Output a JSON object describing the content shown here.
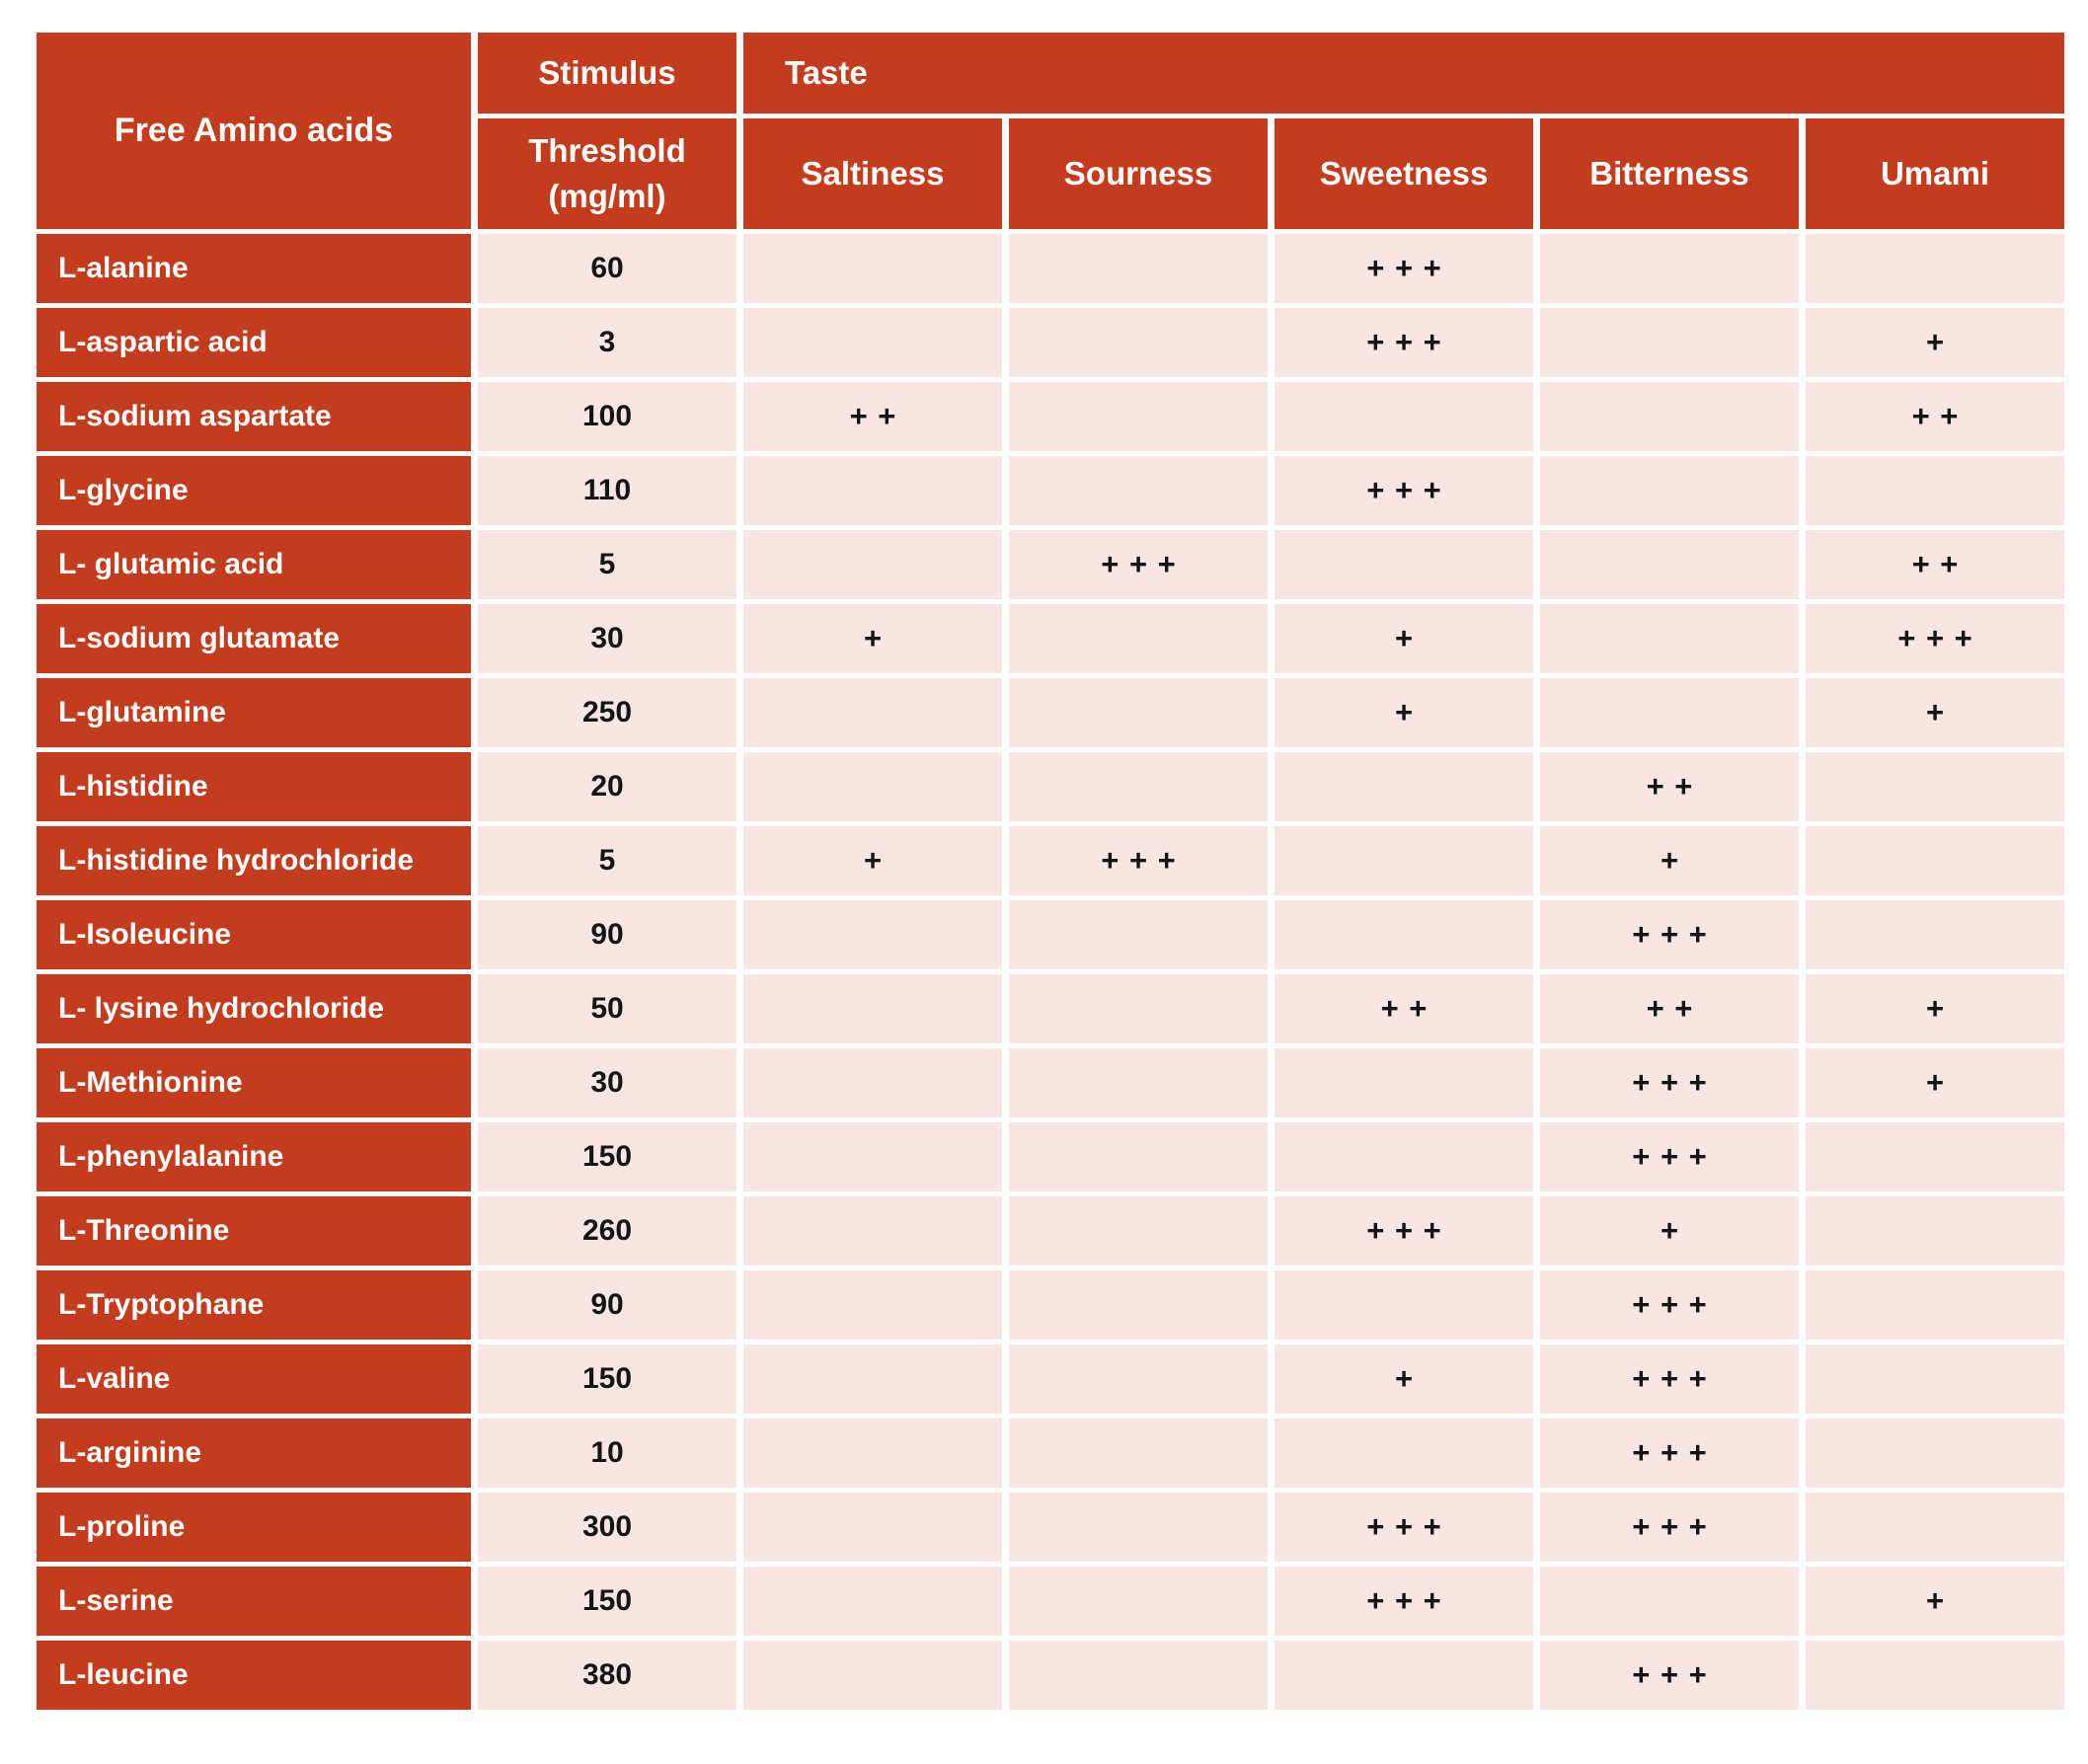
{
  "colors": {
    "header_red": "#C43C1E",
    "cell_pink": "#F7E6E2",
    "header_text_white": "#FFFFFF",
    "mark_black": "#151515",
    "page_background": "#FFFFFF"
  },
  "table": {
    "header": {
      "free_amino_acids": "Free Amino acids",
      "stimulus": "Stimulus",
      "threshold_line1": "Threshold",
      "threshold_line2": "(mg/ml)",
      "taste": "Taste",
      "taste_columns": [
        "Saltiness",
        "Sourness",
        "Sweetness",
        "Bitterness",
        "Umami"
      ]
    },
    "rows": [
      {
        "name": "L-alanine",
        "threshold": "60",
        "saltiness": "",
        "sourness": "",
        "sweetness": "+++",
        "bitterness": "",
        "umami": ""
      },
      {
        "name": "L-aspartic acid",
        "threshold": "3",
        "saltiness": "",
        "sourness": "",
        "sweetness": "+++",
        "bitterness": "",
        "umami": "+"
      },
      {
        "name": "L-sodium aspartate",
        "threshold": "100",
        "saltiness": "++",
        "sourness": "",
        "sweetness": "",
        "bitterness": "",
        "umami": "++"
      },
      {
        "name": "L-glycine",
        "threshold": "110",
        "saltiness": "",
        "sourness": "",
        "sweetness": "+++",
        "bitterness": "",
        "umami": ""
      },
      {
        "name": "L- glutamic acid",
        "threshold": "5",
        "saltiness": "",
        "sourness": "+++",
        "sweetness": "",
        "bitterness": "",
        "umami": "++"
      },
      {
        "name": "L-sodium glutamate",
        "threshold": "30",
        "saltiness": "+",
        "sourness": "",
        "sweetness": "+",
        "bitterness": "",
        "umami": "+++"
      },
      {
        "name": "L-glutamine",
        "threshold": "250",
        "saltiness": "",
        "sourness": "",
        "sweetness": "+",
        "bitterness": "",
        "umami": "+"
      },
      {
        "name": "L-histidine",
        "threshold": "20",
        "saltiness": "",
        "sourness": "",
        "sweetness": "",
        "bitterness": "++",
        "umami": ""
      },
      {
        "name": "L-histidine hydrochloride",
        "threshold": "5",
        "saltiness": "+",
        "sourness": "+++",
        "sweetness": "",
        "bitterness": "+",
        "umami": ""
      },
      {
        "name": "L-Isoleucine",
        "threshold": "90",
        "saltiness": "",
        "sourness": "",
        "sweetness": "",
        "bitterness": "+++",
        "umami": ""
      },
      {
        "name": "L- lysine hydrochloride",
        "threshold": "50",
        "saltiness": "",
        "sourness": "",
        "sweetness": "++",
        "bitterness": "++",
        "umami": "+"
      },
      {
        "name": "L-Methionine",
        "threshold": "30",
        "saltiness": "",
        "sourness": "",
        "sweetness": "",
        "bitterness": "+++",
        "umami": "+"
      },
      {
        "name": "L-phenylalanine",
        "threshold": "150",
        "saltiness": "",
        "sourness": "",
        "sweetness": "",
        "bitterness": "+++",
        "umami": ""
      },
      {
        "name": "L-Threonine",
        "threshold": "260",
        "saltiness": "",
        "sourness": "",
        "sweetness": "+++",
        "bitterness": "+",
        "umami": ""
      },
      {
        "name": "L-Tryptophane",
        "threshold": "90",
        "saltiness": "",
        "sourness": "",
        "sweetness": "",
        "bitterness": "+++",
        "umami": ""
      },
      {
        "name": "L-valine",
        "threshold": "150",
        "saltiness": "",
        "sourness": "",
        "sweetness": "+",
        "bitterness": "+++",
        "umami": ""
      },
      {
        "name": "L-arginine",
        "threshold": "10",
        "saltiness": "",
        "sourness": "",
        "sweetness": "",
        "bitterness": "+++",
        "umami": ""
      },
      {
        "name": "L-proline",
        "threshold": "300",
        "saltiness": "",
        "sourness": "",
        "sweetness": "+++",
        "bitterness": "+++",
        "umami": ""
      },
      {
        "name": "L-serine",
        "threshold": "150",
        "saltiness": "",
        "sourness": "",
        "sweetness": "+++",
        "bitterness": "",
        "umami": "+"
      },
      {
        "name": "L-leucine",
        "threshold": "380",
        "saltiness": "",
        "sourness": "",
        "sweetness": "",
        "bitterness": "+++",
        "umami": ""
      }
    ]
  }
}
